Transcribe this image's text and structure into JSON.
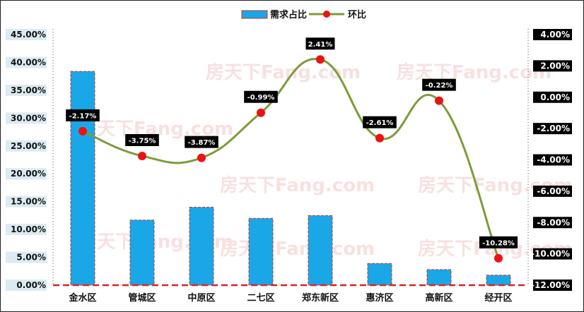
{
  "chart_data": {
    "type": "bar",
    "categories": [
      "金水区",
      "管城区",
      "中原区",
      "二七区",
      "郑东新区",
      "惠济区",
      "高新区",
      "经开区"
    ],
    "series": [
      {
        "name": "需求占比",
        "type": "bar",
        "axis": "left",
        "color": "#1aa7e8",
        "values": [
          38.4,
          11.7,
          14.0,
          12.0,
          12.5,
          3.9,
          2.8,
          1.8
        ]
      },
      {
        "name": "环比",
        "type": "line",
        "axis": "right",
        "color": "#7d9b3a",
        "marker_color": "#ee1111",
        "values": [
          -2.17,
          -3.75,
          -3.87,
          -0.99,
          2.41,
          -2.61,
          -0.22,
          -10.28
        ],
        "labels": [
          "-2.17%",
          "-3.75%",
          "-3.87%",
          "-0.99%",
          "2.41%",
          "-2.61%",
          "-0.22%",
          "-10.28%"
        ]
      }
    ],
    "left_axis": {
      "ylim": [
        0,
        45
      ],
      "ticks": [
        0,
        5,
        10,
        15,
        20,
        25,
        30,
        35,
        40,
        45
      ],
      "tick_labels": [
        "0.00%",
        "5.00%",
        "10.00%",
        "15.00%",
        "20.00%",
        "25.00%",
        "30.00%",
        "35.00%",
        "40.00%",
        "45.00%"
      ]
    },
    "right_axis": {
      "ylim": [
        -12,
        4
      ],
      "ticks": [
        -12,
        -10,
        -8,
        -6,
        -4,
        -2,
        0,
        2,
        4
      ],
      "tick_labels": [
        "-12.00%",
        "-10.00%",
        "-8.00%",
        "-6.00%",
        "-4.00%",
        "-2.00%",
        "0.00%",
        "2.00%",
        "4.00%"
      ]
    },
    "legend": {
      "position": "top-center",
      "entries": [
        "需求占比",
        "环比"
      ]
    },
    "grid": false,
    "watermark": "房天下Fang.com"
  }
}
